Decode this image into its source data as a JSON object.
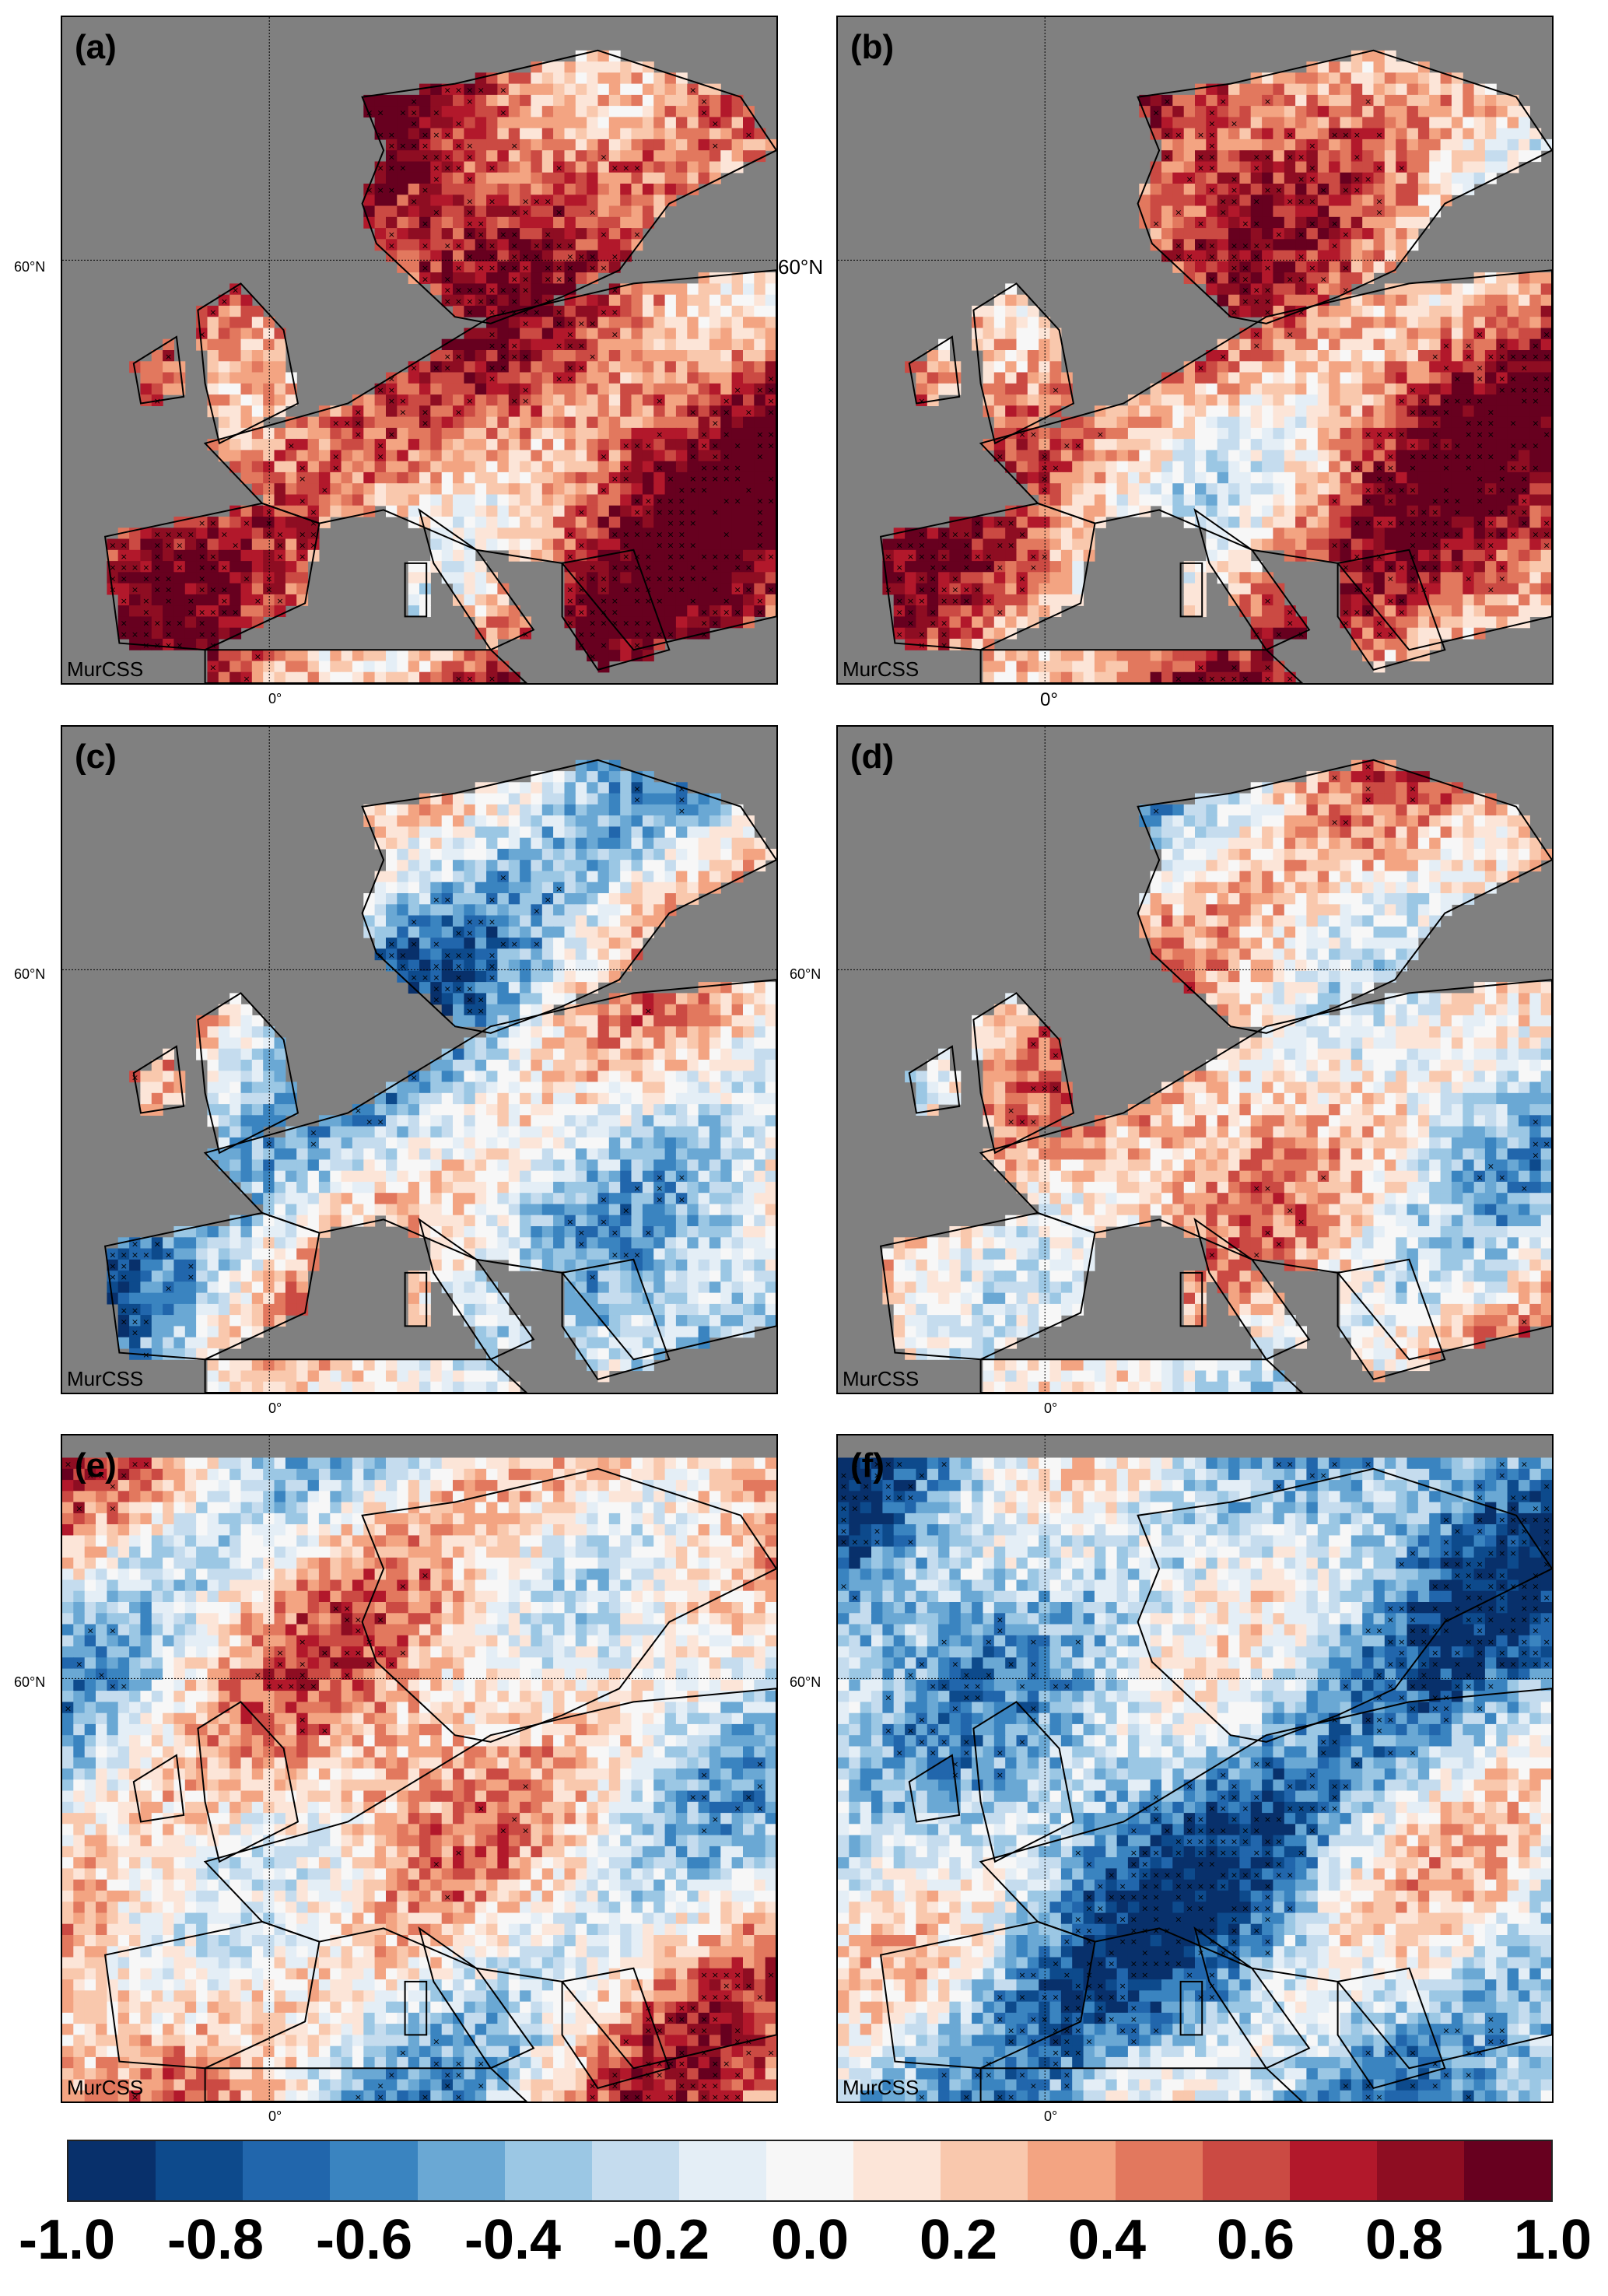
{
  "panels": [
    {
      "id": "a",
      "label": "(a)",
      "method": "MurCSS",
      "lat_label": "60°N",
      "lon_label": "0°",
      "kind": "land",
      "seed": 11,
      "bias": 0.55
    },
    {
      "id": "b",
      "label": "(b)",
      "method": "MurCSS",
      "lat_label": "60°N",
      "lon_label": "0°",
      "kind": "land",
      "seed": 23,
      "bias": 0.45
    },
    {
      "id": "c",
      "label": "(c)",
      "method": "MurCSS",
      "lat_label": "60°N",
      "lon_label": "0°",
      "kind": "land",
      "seed": 37,
      "bias": -0.15
    },
    {
      "id": "d",
      "label": "(d)",
      "method": "MurCSS",
      "lat_label": "60°N",
      "lon_label": "0°",
      "kind": "land",
      "seed": 41,
      "bias": 0.1
    },
    {
      "id": "e",
      "label": "(e)",
      "method": "MurCSS",
      "lat_label": "60°N",
      "lon_label": "0°",
      "kind": "full",
      "seed": 53,
      "bias": 0.1
    },
    {
      "id": "f",
      "label": "(f)",
      "method": "MurCSS",
      "lat_label": "60°N",
      "lon_label": "0°",
      "kind": "full",
      "seed": 67,
      "bias": -0.35
    }
  ],
  "colorbar": {
    "ticks": [
      "-1.0",
      "-0.8",
      "-0.6",
      "-0.4",
      "-0.2",
      "0.0",
      "0.2",
      "0.4",
      "0.6",
      "0.8",
      "1.0"
    ],
    "colors": [
      "#08306b",
      "#0d4a8c",
      "#2166ac",
      "#3a84c0",
      "#6aa8d4",
      "#9bc7e4",
      "#c5dcee",
      "#e4eef6",
      "#f7f7f7",
      "#fce5d8",
      "#f9c8ad",
      "#f3a482",
      "#e2785e",
      "#cb4a43",
      "#b2182b",
      "#8e0d22",
      "#67001f"
    ]
  },
  "land_mask_color": "#808080"
}
